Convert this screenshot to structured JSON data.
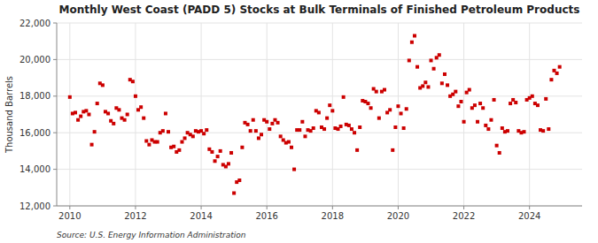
{
  "chart_data": {
    "type": "scatter",
    "title": "Monthly West Coast (PADD 5) Stocks at Bulk Terminals of Finished Petroleum Products",
    "ylabel": "Thousand Barrels",
    "annotations": [
      "Source: U.S. Energy Information Administration"
    ],
    "color": "#cc0000",
    "marker": "square",
    "grid": true,
    "xlim": [
      2009.6,
      2025.6
    ],
    "xticks": [
      2010,
      2012,
      2014,
      2016,
      2018,
      2020,
      2022,
      2024
    ],
    "ylim": [
      12000,
      22000
    ],
    "yticks": [
      {
        "value": 12000,
        "label": "12,000"
      },
      {
        "value": 14000,
        "label": "14,000"
      },
      {
        "value": 16000,
        "label": "16,000"
      },
      {
        "value": 18000,
        "label": "18,000"
      },
      {
        "value": 20000,
        "label": "20,000"
      },
      {
        "value": 22000,
        "label": "22,000"
      }
    ],
    "x": [
      2010.0,
      2010.083,
      2010.167,
      2010.25,
      2010.333,
      2010.417,
      2010.5,
      2010.583,
      2010.667,
      2010.75,
      2010.833,
      2010.917,
      2011.0,
      2011.083,
      2011.167,
      2011.25,
      2011.333,
      2011.417,
      2011.5,
      2011.583,
      2011.667,
      2011.75,
      2011.833,
      2011.917,
      2012.0,
      2012.083,
      2012.167,
      2012.25,
      2012.333,
      2012.417,
      2012.5,
      2012.583,
      2012.667,
      2012.75,
      2012.833,
      2012.917,
      2013.0,
      2013.083,
      2013.167,
      2013.25,
      2013.333,
      2013.417,
      2013.5,
      2013.583,
      2013.667,
      2013.75,
      2013.833,
      2013.917,
      2014.0,
      2014.083,
      2014.167,
      2014.25,
      2014.333,
      2014.417,
      2014.5,
      2014.583,
      2014.667,
      2014.75,
      2014.833,
      2014.917,
      2015.0,
      2015.083,
      2015.167,
      2015.25,
      2015.333,
      2015.417,
      2015.5,
      2015.583,
      2015.667,
      2015.75,
      2015.833,
      2015.917,
      2016.0,
      2016.083,
      2016.167,
      2016.25,
      2016.333,
      2016.417,
      2016.5,
      2016.583,
      2016.667,
      2016.75,
      2016.833,
      2016.917,
      2017.0,
      2017.083,
      2017.167,
      2017.25,
      2017.333,
      2017.417,
      2017.5,
      2017.583,
      2017.667,
      2017.75,
      2017.833,
      2017.917,
      2018.0,
      2018.083,
      2018.167,
      2018.25,
      2018.333,
      2018.417,
      2018.5,
      2018.583,
      2018.667,
      2018.75,
      2018.833,
      2018.917,
      2019.0,
      2019.083,
      2019.167,
      2019.25,
      2019.333,
      2019.417,
      2019.5,
      2019.583,
      2019.667,
      2019.75,
      2019.833,
      2019.917,
      2020.0,
      2020.083,
      2020.167,
      2020.25,
      2020.333,
      2020.417,
      2020.5,
      2020.583,
      2020.667,
      2020.75,
      2020.833,
      2020.917,
      2021.0,
      2021.083,
      2021.167,
      2021.25,
      2021.333,
      2021.417,
      2021.5,
      2021.583,
      2021.667,
      2021.75,
      2021.833,
      2021.917,
      2022.0,
      2022.083,
      2022.167,
      2022.25,
      2022.333,
      2022.417,
      2022.5,
      2022.583,
      2022.667,
      2022.75,
      2022.833,
      2022.917,
      2023.0,
      2023.083,
      2023.167,
      2023.25,
      2023.333,
      2023.417,
      2023.5,
      2023.583,
      2023.667,
      2023.75,
      2023.833,
      2023.917,
      2024.0,
      2024.083,
      2024.167,
      2024.25,
      2024.333,
      2024.417,
      2024.5,
      2024.583,
      2024.667,
      2024.75,
      2024.833,
      2024.917
    ],
    "values": [
      17950,
      17050,
      17100,
      16700,
      16900,
      17150,
      17200,
      17000,
      15350,
      16050,
      17600,
      18700,
      18600,
      17150,
      17050,
      16650,
      16500,
      17350,
      17250,
      16800,
      16700,
      17000,
      18900,
      18800,
      18000,
      17250,
      17400,
      16800,
      15550,
      15350,
      15600,
      15500,
      15500,
      16000,
      16100,
      17050,
      16050,
      15200,
      15250,
      14950,
      15050,
      15500,
      15700,
      16000,
      15900,
      15800,
      16100,
      16050,
      16100,
      15950,
      16150,
      15100,
      14950,
      14450,
      14700,
      15000,
      14250,
      14150,
      14300,
      14900,
      12700,
      13300,
      13400,
      15200,
      16550,
      16450,
      16100,
      16700,
      16100,
      15700,
      15900,
      16700,
      16600,
      16200,
      16500,
      16700,
      16550,
      15800,
      15600,
      15450,
      15500,
      15200,
      14000,
      16150,
      16150,
      16600,
      15800,
      16150,
      16100,
      16250,
      17200,
      17100,
      16300,
      16200,
      16800,
      17500,
      17200,
      16250,
      16200,
      16350,
      17950,
      16450,
      16400,
      16200,
      16000,
      15050,
      16300,
      17750,
      17700,
      17600,
      17350,
      18400,
      18250,
      16800,
      18250,
      18350,
      17100,
      17250,
      15050,
      16300,
      17450,
      17050,
      16250,
      17300,
      19950,
      20950,
      21300,
      19600,
      18450,
      18550,
      18750,
      18500,
      19950,
      19500,
      20100,
      20250,
      18700,
      19200,
      18600,
      18000,
      18100,
      18250,
      17450,
      17700,
      16600,
      18200,
      18350,
      17350,
      17500,
      16600,
      17600,
      17350,
      16400,
      16200,
      16700,
      17800,
      15300,
      14900,
      16250,
      16050,
      16100,
      17600,
      17800,
      17650,
      16100,
      16000,
      16050,
      17800,
      17900,
      18000,
      17600,
      17500,
      16150,
      16100,
      17850,
      16200,
      18900,
      19400,
      19250,
      19600
    ]
  }
}
